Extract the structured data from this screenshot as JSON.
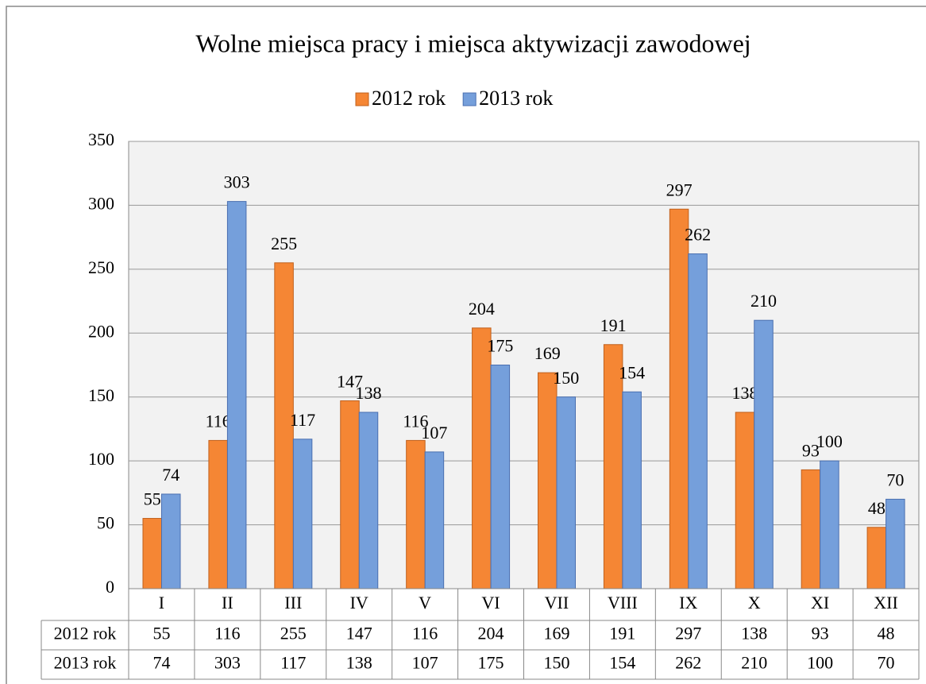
{
  "chart_data": {
    "type": "bar",
    "title": "Wolne miejsca pracy i miejsca aktywizacji zawodowej",
    "categories": [
      "I",
      "II",
      "III",
      "IV",
      "V",
      "VI",
      "VII",
      "VIII",
      "IX",
      "X",
      "XI",
      "XII"
    ],
    "series": [
      {
        "name": "2012 rok",
        "color": "#f58634",
        "values": [
          55,
          116,
          255,
          147,
          116,
          204,
          169,
          191,
          297,
          138,
          93,
          48
        ]
      },
      {
        "name": "2013 rok",
        "color": "#759fdb",
        "values": [
          74,
          303,
          117,
          138,
          107,
          175,
          150,
          154,
          262,
          210,
          100,
          70
        ]
      }
    ],
    "ylim": [
      0,
      350
    ],
    "yticks": [
      0,
      50,
      100,
      150,
      200,
      250,
      300,
      350
    ],
    "grid": true,
    "legend": "top",
    "data_table": true
  }
}
